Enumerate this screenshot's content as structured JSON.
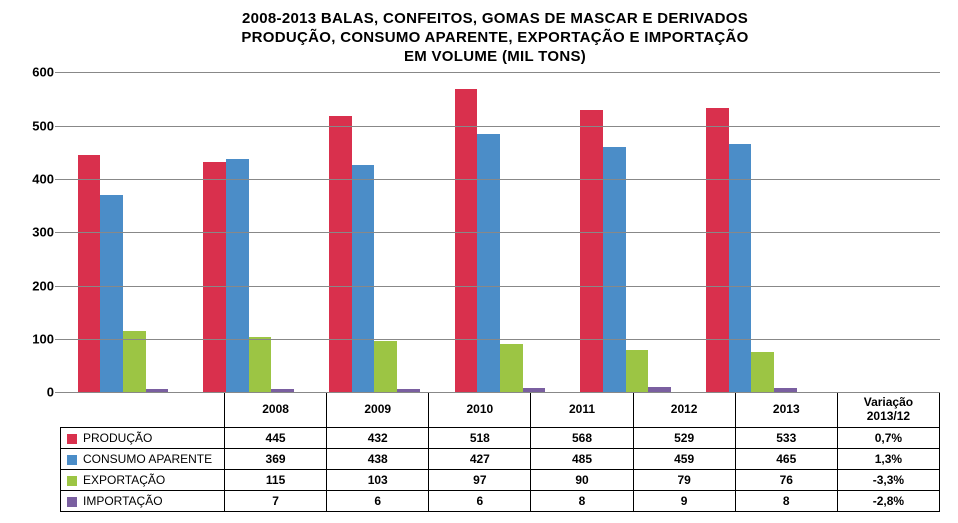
{
  "title_lines": [
    "2008-2013 BALAS, CONFEITOS, GOMAS DE MASCAR E DERIVADOS",
    "PRODUÇÃO, CONSUMO APARENTE, EXPORTAÇÃO E IMPORTAÇÃO",
    "EM VOLUME (MIL TONS)"
  ],
  "chart": {
    "type": "bar",
    "categories": [
      "2008",
      "2009",
      "2010",
      "2011",
      "2012",
      "2013"
    ],
    "extra_category": "Variação 2013/12",
    "series": [
      {
        "key": "producao",
        "label": "PRODUÇÃO",
        "color": "#d9304d",
        "values": [
          445,
          432,
          518,
          568,
          529,
          533
        ],
        "variation": "0,7%"
      },
      {
        "key": "consumo",
        "label": "CONSUMO APARENTE",
        "color": "#4b8dc8",
        "values": [
          369,
          438,
          427,
          485,
          459,
          465
        ],
        "variation": "1,3%"
      },
      {
        "key": "export",
        "label": "EXPORTAÇÃO",
        "color": "#9cc544",
        "values": [
          115,
          103,
          97,
          90,
          79,
          76
        ],
        "variation": "-3,3%"
      },
      {
        "key": "import",
        "label": "IMPORTAÇÃO",
        "color": "#7a5fa0",
        "values": [
          7,
          6,
          6,
          8,
          9,
          8
        ],
        "variation": "-2,8%"
      }
    ],
    "y_axis": {
      "min": 0,
      "max": 600,
      "step": 100,
      "ticks": [
        0,
        100,
        200,
        300,
        400,
        500,
        600
      ],
      "label_fontsize": 13
    },
    "grid_color": "#888888",
    "background_color": "#ffffff",
    "title_fontsize": 15,
    "bar_group_inset_pct": 14
  }
}
